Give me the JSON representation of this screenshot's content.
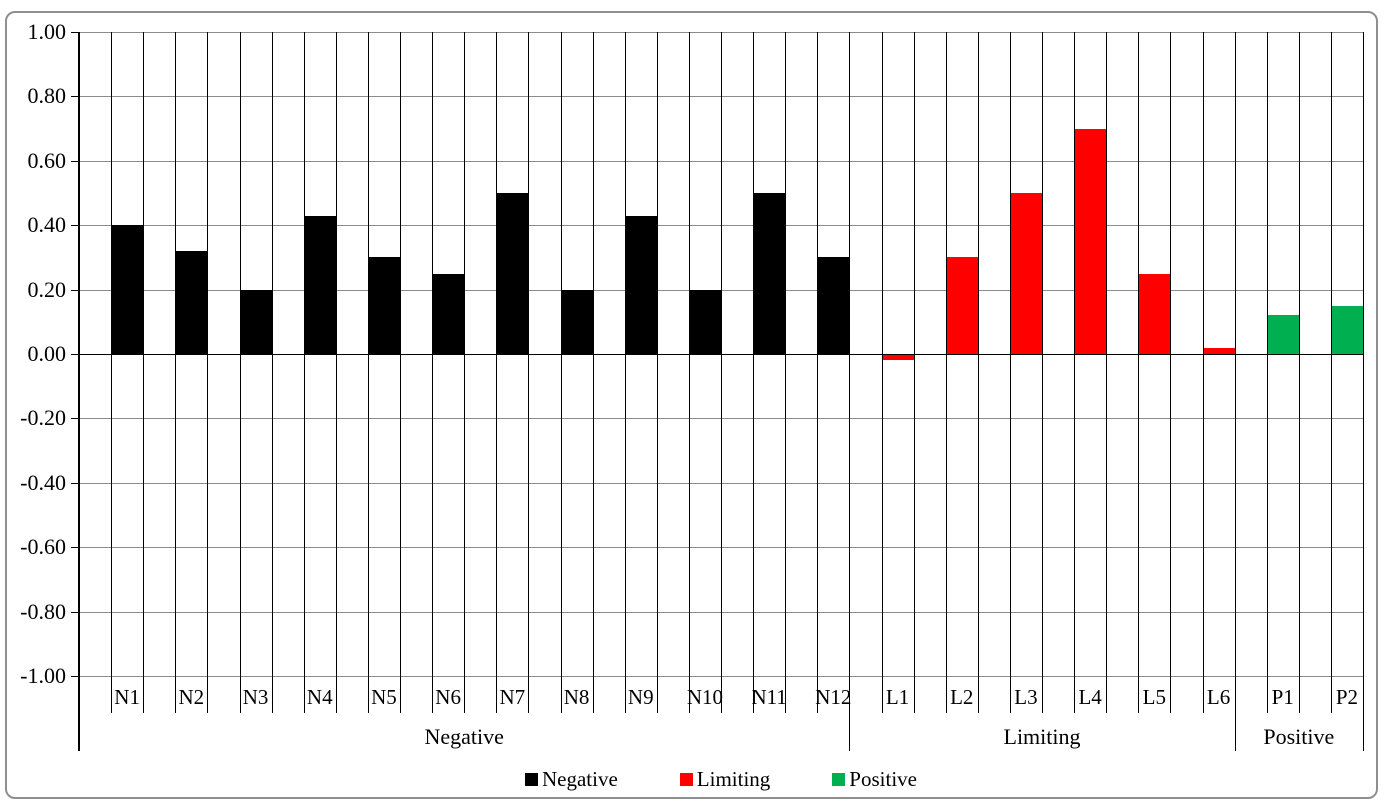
{
  "frame": {
    "background": "#ffffff",
    "border_color": "#8f8f8f"
  },
  "chart_data": {
    "type": "bar",
    "title": "",
    "xlabel": "",
    "ylabel": "",
    "categories": [
      "N1",
      "N2",
      "N3",
      "N4",
      "N5",
      "N6",
      "N7",
      "N8",
      "N9",
      "N10",
      "N11",
      "N12",
      "L1",
      "L2",
      "L3",
      "L4",
      "L5",
      "L6",
      "P1",
      "P2"
    ],
    "values": [
      0.4,
      0.32,
      0.2,
      0.43,
      0.3,
      0.25,
      0.5,
      0.2,
      0.43,
      0.2,
      0.5,
      0.3,
      -0.02,
      0.3,
      0.5,
      0.7,
      0.25,
      0.02,
      0.12,
      0.15
    ],
    "groups": [
      {
        "label": "Negative",
        "count": 12,
        "color": "#000000"
      },
      {
        "label": "Limiting",
        "count": 6,
        "color": "#fe0000"
      },
      {
        "label": "Positive",
        "count": 2,
        "color": "#00b050"
      }
    ],
    "ylim": [
      -1.0,
      1.0
    ],
    "ytick_step": 0.2,
    "ytick_labels": [
      "1.00",
      "0.80",
      "0.60",
      "0.40",
      "0.20",
      "0.00",
      "-0.20",
      "-0.40",
      "-0.60",
      "-0.80",
      "-1.00"
    ],
    "grid": "horizontal-gray-and-vertical-black-major",
    "h_gridline_color": "#8c8c8c",
    "v_gridline_color": "#000000",
    "axis_color": "#000000",
    "legend": {
      "position": "bottom-center",
      "entries": [
        {
          "label": "Negative",
          "color": "#000000"
        },
        {
          "label": "Limiting",
          "color": "#fe0000"
        },
        {
          "label": "Positive",
          "color": "#00b050"
        }
      ]
    }
  }
}
